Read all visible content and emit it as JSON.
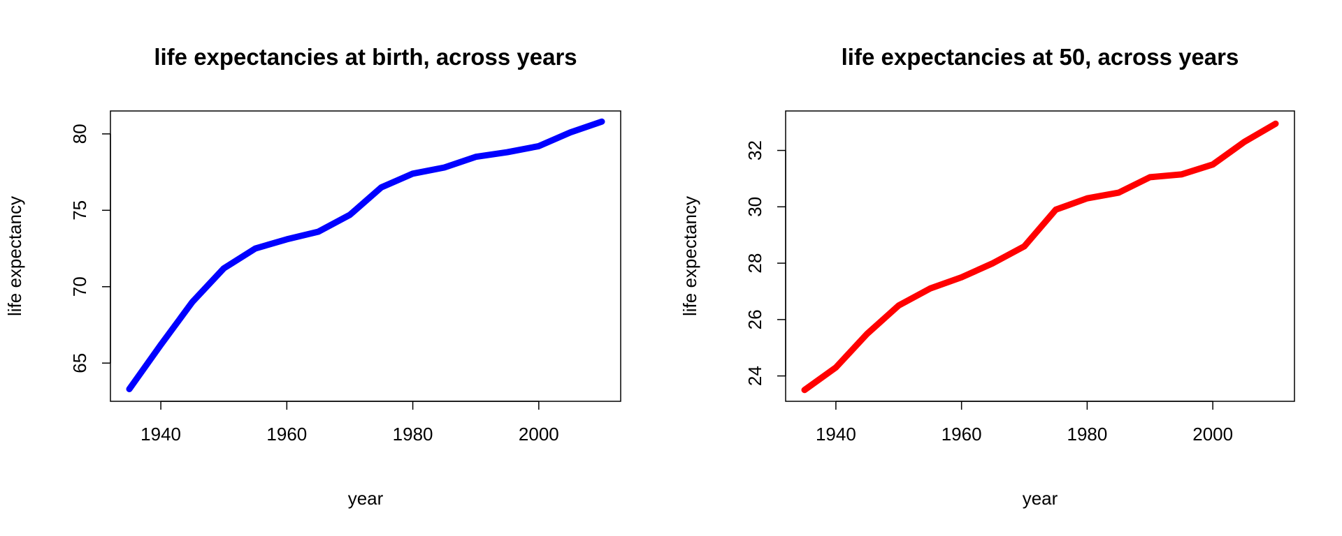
{
  "chart_data": [
    {
      "type": "line",
      "title": "life expectancies at birth, across years",
      "xlabel": "year",
      "ylabel": "life expectancy",
      "xlim": [
        1932,
        2013
      ],
      "ylim": [
        62.5,
        81.5
      ],
      "xticks": [
        1940,
        1960,
        1980,
        2000
      ],
      "yticks": [
        65,
        70,
        75,
        80
      ],
      "grid": false,
      "color": "#0000ff",
      "series": [
        {
          "x": [
            1935,
            1940,
            1945,
            1950,
            1955,
            1960,
            1965,
            1970,
            1975,
            1980,
            1985,
            1990,
            1995,
            2000,
            2005,
            2010
          ],
          "values": [
            63.3,
            66.2,
            69.0,
            71.2,
            72.5,
            73.1,
            73.6,
            74.7,
            76.5,
            77.4,
            77.8,
            78.5,
            78.8,
            79.2,
            80.1,
            80.8
          ]
        }
      ]
    },
    {
      "type": "line",
      "title": "life expectancies at 50, across years",
      "xlabel": "year",
      "ylabel": "life expectancy",
      "xlim": [
        1932,
        2013
      ],
      "ylim": [
        23.1,
        33.4
      ],
      "xticks": [
        1940,
        1960,
        1980,
        2000
      ],
      "yticks": [
        24,
        26,
        28,
        30,
        32
      ],
      "grid": false,
      "color": "#ff0000",
      "series": [
        {
          "x": [
            1935,
            1940,
            1945,
            1950,
            1955,
            1960,
            1965,
            1970,
            1975,
            1980,
            1985,
            1990,
            1995,
            2000,
            2005,
            2010
          ],
          "values": [
            23.5,
            24.3,
            25.5,
            26.5,
            27.1,
            27.5,
            28.0,
            28.6,
            29.9,
            30.3,
            30.5,
            31.05,
            31.15,
            31.5,
            32.3,
            32.95
          ]
        }
      ]
    }
  ]
}
